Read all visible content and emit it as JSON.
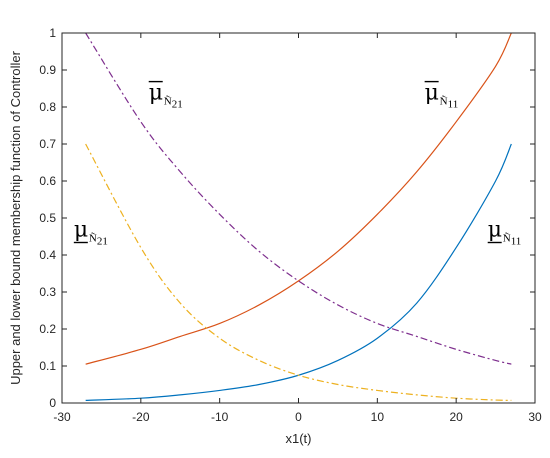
{
  "chart_data": {
    "type": "line",
    "xlabel": "x1(t)",
    "ylabel": "Upper and lower bound membership function of Controller",
    "xlim": [
      -30,
      30
    ],
    "ylim": [
      0,
      1
    ],
    "xticks": [
      -30,
      -20,
      -10,
      0,
      10,
      20,
      30
    ],
    "yticks": [
      0,
      0.1,
      0.2,
      0.3,
      0.4,
      0.5,
      0.6,
      0.7,
      0.8,
      0.9,
      1
    ],
    "grid": false,
    "series": [
      {
        "color": "#0072BD",
        "style": "solid",
        "x": [
          -27,
          -20,
          -15,
          -10,
          -5,
          0,
          5,
          10,
          15,
          20,
          25,
          27
        ],
        "y": [
          0.007,
          0.013,
          0.022,
          0.034,
          0.05,
          0.075,
          0.115,
          0.175,
          0.27,
          0.42,
          0.6,
          0.7
        ]
      },
      {
        "color": "#D95319",
        "style": "solid",
        "x": [
          -27,
          -20,
          -15,
          -10,
          -5,
          0,
          5,
          10,
          15,
          20,
          25,
          27
        ],
        "y": [
          0.105,
          0.145,
          0.18,
          0.215,
          0.265,
          0.33,
          0.41,
          0.51,
          0.625,
          0.76,
          0.91,
          1.0
        ]
      },
      {
        "color": "#EDB120",
        "style": "dashdot",
        "x": [
          -27,
          -20,
          -15,
          -10,
          -5,
          0,
          5,
          10,
          15,
          20,
          25,
          27
        ],
        "y": [
          0.7,
          0.42,
          0.27,
          0.175,
          0.115,
          0.075,
          0.05,
          0.034,
          0.022,
          0.013,
          0.008,
          0.007
        ]
      },
      {
        "color": "#7E2F8E",
        "style": "dashdot",
        "x": [
          -27,
          -20,
          -15,
          -10,
          -5,
          0,
          5,
          10,
          15,
          20,
          25,
          27
        ],
        "y": [
          1.0,
          0.76,
          0.625,
          0.51,
          0.41,
          0.33,
          0.265,
          0.215,
          0.18,
          0.145,
          0.115,
          0.105
        ]
      }
    ],
    "annotations": [
      {
        "mu": "μ",
        "bar": "over",
        "sub": "Ñ",
        "sub_index": "21",
        "x": -19,
        "y": 0.82
      },
      {
        "mu": "μ",
        "bar": "over",
        "sub": "Ñ",
        "sub_index": "11",
        "x": 16,
        "y": 0.82
      },
      {
        "mu": "μ",
        "bar": "under",
        "sub": "Ñ",
        "sub_index": "21",
        "x": -28.5,
        "y": 0.45
      },
      {
        "mu": "μ",
        "bar": "under",
        "sub": "Ñ",
        "sub_index": "11",
        "x": 24,
        "y": 0.45
      }
    ]
  }
}
